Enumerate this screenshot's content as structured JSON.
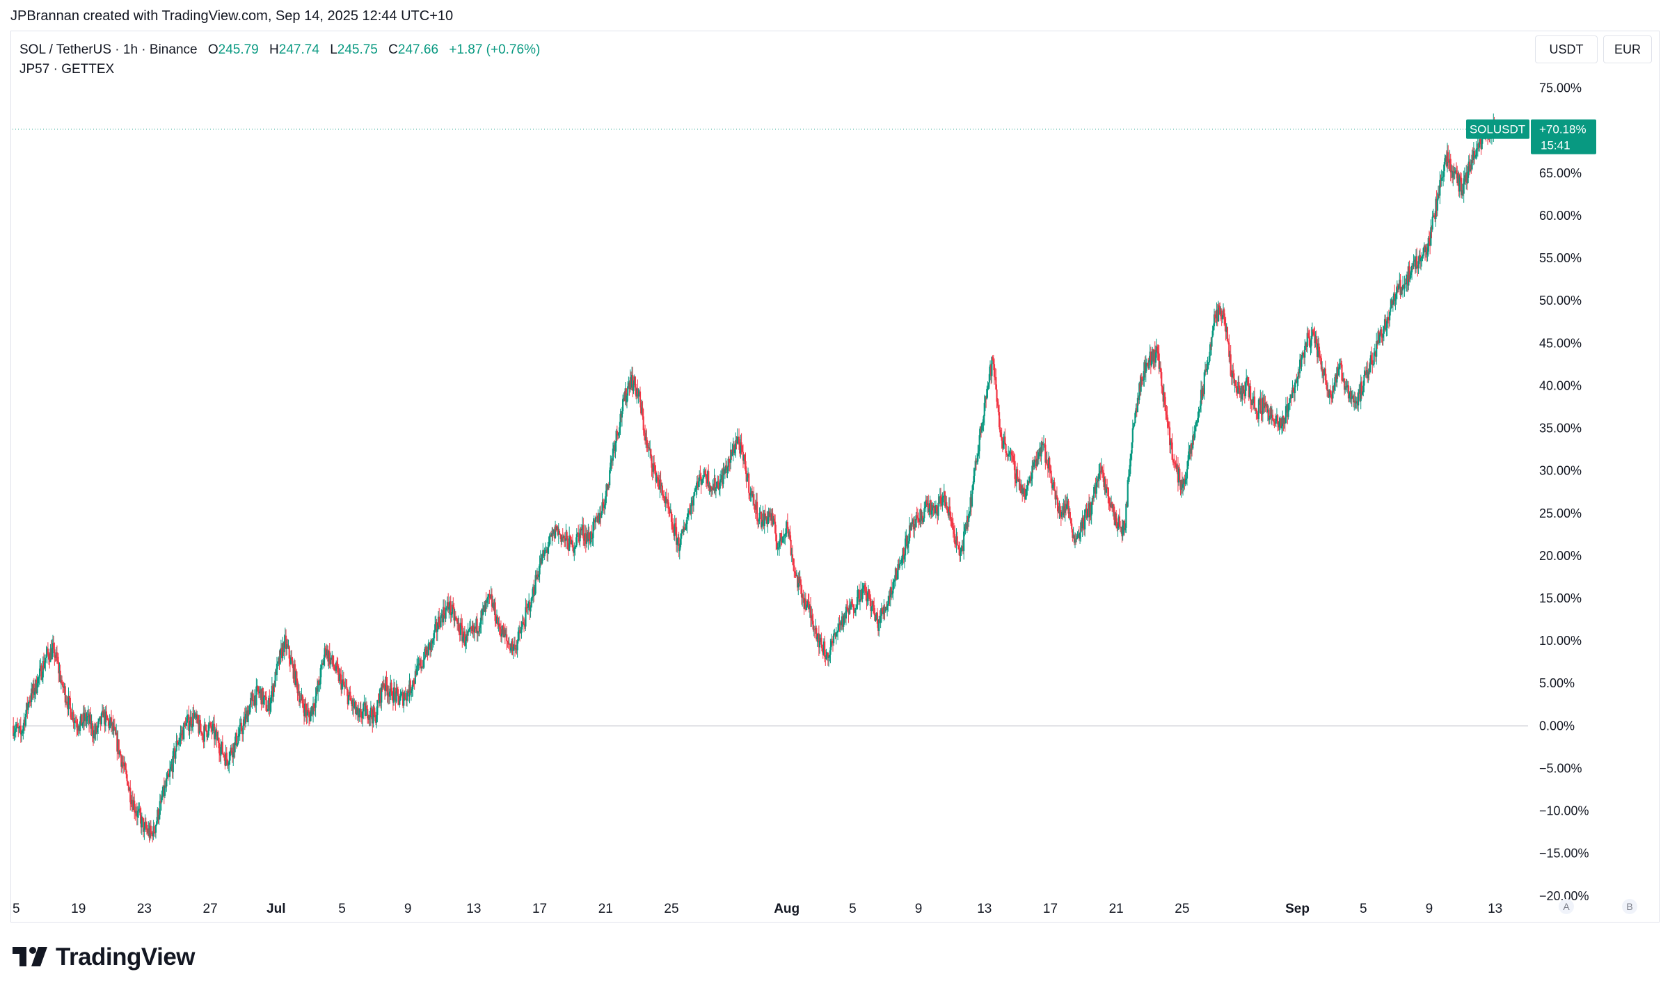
{
  "credit": "JPBrannan created with TradingView.com, Sep 14, 2025 12:44 UTC+10",
  "legend": {
    "symbol": "SOL / TetherUS · 1h · Binance",
    "open_label": "O",
    "open_value": "245.79",
    "high_label": "H",
    "high_value": "247.74",
    "low_label": "L",
    "low_value": "245.75",
    "close_label": "C",
    "close_value": "247.66",
    "change": "+1.87 (+0.76%)",
    "indicator": "JP57 · GETTEX"
  },
  "currency_buttons": [
    "USDT",
    "EUR"
  ],
  "scale_buttons": [
    "A",
    "B"
  ],
  "price_tag": {
    "symbol": "SOLUSDT",
    "value": "+70.18%",
    "countdown": "15:41"
  },
  "logo_text": "TradingView",
  "colors": {
    "up": "#089981",
    "down": "#f23645",
    "tag_bg": "#089981"
  },
  "chart_data": {
    "type": "candlestick",
    "ylim": [
      -21,
      78
    ],
    "y_tick_labels": [
      "75.00%",
      "65.00%",
      "60.00%",
      "55.00%",
      "50.00%",
      "45.00%",
      "40.00%",
      "35.00%",
      "30.00%",
      "25.00%",
      "20.00%",
      "15.00%",
      "10.00%",
      "5.00%",
      "0.00%",
      "−5.00%",
      "−10.00%",
      "−15.00%",
      "−20.00%"
    ],
    "y_tick_values": [
      75,
      65,
      60,
      55,
      50,
      45,
      40,
      35,
      30,
      25,
      20,
      15,
      10,
      5,
      0,
      -5,
      -10,
      -15,
      -20
    ],
    "x_tick_labels": [
      "5",
      "19",
      "23",
      "27",
      "Jul",
      "5",
      "9",
      "13",
      "17",
      "21",
      "25",
      "Aug",
      "5",
      "9",
      "13",
      "17",
      "21",
      "25",
      "Sep",
      "5",
      "9",
      "13"
    ],
    "x_tick_days": [
      0,
      4,
      8,
      12,
      16,
      20,
      24,
      28,
      32,
      36,
      40,
      47,
      51,
      55,
      59,
      63,
      67,
      71,
      78,
      82,
      86,
      90
    ],
    "x_tick_bold": [
      false,
      false,
      false,
      false,
      true,
      false,
      false,
      false,
      false,
      false,
      false,
      true,
      false,
      false,
      false,
      false,
      false,
      false,
      true,
      false,
      false,
      false
    ],
    "xlim_days": [
      0,
      92
    ],
    "baseline": 0,
    "last_value": 70.18,
    "close_path": [
      [
        0,
        0
      ],
      [
        0.5,
        -1
      ],
      [
        1,
        3
      ],
      [
        1.5,
        5
      ],
      [
        2,
        8
      ],
      [
        2.5,
        9
      ],
      [
        3,
        5
      ],
      [
        3.5,
        2
      ],
      [
        4,
        0
      ],
      [
        4.5,
        1
      ],
      [
        5,
        -1
      ],
      [
        5.5,
        1
      ],
      [
        6,
        0
      ],
      [
        6.5,
        -3
      ],
      [
        7,
        -7
      ],
      [
        7.5,
        -10
      ],
      [
        8,
        -12
      ],
      [
        8.5,
        -13
      ],
      [
        9,
        -9
      ],
      [
        9.5,
        -6
      ],
      [
        10,
        -2
      ],
      [
        10.5,
        0
      ],
      [
        11,
        1
      ],
      [
        11.5,
        -1
      ],
      [
        12,
        0
      ],
      [
        12.5,
        -2
      ],
      [
        13,
        -4
      ],
      [
        13.5,
        -2
      ],
      [
        14,
        0
      ],
      [
        14.5,
        3
      ],
      [
        15,
        4
      ],
      [
        15.5,
        2
      ],
      [
        16,
        6
      ],
      [
        16.5,
        10
      ],
      [
        17,
        7
      ],
      [
        17.5,
        3
      ],
      [
        18,
        1
      ],
      [
        18.5,
        4
      ],
      [
        19,
        9
      ],
      [
        19.5,
        7
      ],
      [
        20,
        5
      ],
      [
        20.5,
        3
      ],
      [
        21,
        1
      ],
      [
        21.5,
        2
      ],
      [
        22,
        1
      ],
      [
        22.5,
        5
      ],
      [
        23,
        4
      ],
      [
        23.5,
        3
      ],
      [
        24,
        4
      ],
      [
        24.5,
        6
      ],
      [
        25,
        8
      ],
      [
        25.5,
        10
      ],
      [
        26,
        13
      ],
      [
        26.5,
        14
      ],
      [
        27,
        12
      ],
      [
        27.5,
        10
      ],
      [
        28,
        11
      ],
      [
        28.5,
        13
      ],
      [
        29,
        15
      ],
      [
        29.5,
        12
      ],
      [
        30,
        10
      ],
      [
        30.5,
        9
      ],
      [
        31,
        12
      ],
      [
        31.5,
        15
      ],
      [
        32,
        19
      ],
      [
        32.5,
        21
      ],
      [
        33,
        23
      ],
      [
        33.5,
        22
      ],
      [
        34,
        21
      ],
      [
        34.5,
        23
      ],
      [
        35,
        22
      ],
      [
        35.5,
        24
      ],
      [
        36,
        27
      ],
      [
        36.5,
        33
      ],
      [
        37,
        37
      ],
      [
        37.5,
        41
      ],
      [
        38,
        39
      ],
      [
        38.5,
        33
      ],
      [
        39,
        30
      ],
      [
        39.5,
        27
      ],
      [
        40,
        24
      ],
      [
        40.5,
        21
      ],
      [
        41,
        25
      ],
      [
        41.5,
        28
      ],
      [
        42,
        30
      ],
      [
        42.5,
        28
      ],
      [
        43,
        29
      ],
      [
        43.5,
        31
      ],
      [
        44,
        34
      ],
      [
        44.5,
        30
      ],
      [
        45,
        26
      ],
      [
        45.5,
        24
      ],
      [
        46,
        25
      ],
      [
        46.5,
        21
      ],
      [
        47,
        24
      ],
      [
        47.5,
        18
      ],
      [
        48,
        15
      ],
      [
        48.5,
        13
      ],
      [
        49,
        10
      ],
      [
        49.5,
        8
      ],
      [
        50,
        11
      ],
      [
        50.5,
        13
      ],
      [
        51,
        14
      ],
      [
        51.5,
        16
      ],
      [
        52,
        15
      ],
      [
        52.5,
        12
      ],
      [
        53,
        14
      ],
      [
        53.5,
        17
      ],
      [
        54,
        20
      ],
      [
        54.5,
        23
      ],
      [
        55,
        24
      ],
      [
        55.5,
        26
      ],
      [
        56,
        25
      ],
      [
        56.5,
        27
      ],
      [
        57,
        24
      ],
      [
        57.5,
        20
      ],
      [
        58,
        24
      ],
      [
        58.5,
        31
      ],
      [
        59,
        38
      ],
      [
        59.5,
        43
      ],
      [
        60,
        34
      ],
      [
        60.5,
        32
      ],
      [
        61,
        29
      ],
      [
        61.5,
        27
      ],
      [
        62,
        31
      ],
      [
        62.5,
        33
      ],
      [
        63,
        30
      ],
      [
        63.5,
        25
      ],
      [
        64,
        26
      ],
      [
        64.5,
        22
      ],
      [
        65,
        24
      ],
      [
        65.5,
        26
      ],
      [
        66,
        30
      ],
      [
        66.5,
        27
      ],
      [
        67,
        24
      ],
      [
        67.5,
        23
      ],
      [
        68,
        35
      ],
      [
        68.5,
        41
      ],
      [
        69,
        43
      ],
      [
        69.5,
        44
      ],
      [
        70,
        37
      ],
      [
        70.5,
        31
      ],
      [
        71,
        28
      ],
      [
        71.5,
        32
      ],
      [
        72,
        37
      ],
      [
        72.5,
        42
      ],
      [
        73,
        48
      ],
      [
        73.5,
        49
      ],
      [
        74,
        41
      ],
      [
        74.5,
        39
      ],
      [
        75,
        40
      ],
      [
        75.5,
        37
      ],
      [
        76,
        38
      ],
      [
        76.5,
        36
      ],
      [
        77,
        35
      ],
      [
        77.5,
        38
      ],
      [
        78,
        41
      ],
      [
        78.5,
        45
      ],
      [
        79,
        46
      ],
      [
        79.5,
        42
      ],
      [
        80,
        39
      ],
      [
        80.5,
        42
      ],
      [
        81,
        40
      ],
      [
        81.5,
        38
      ],
      [
        82,
        40
      ],
      [
        82.5,
        43
      ],
      [
        83,
        46
      ],
      [
        83.5,
        48
      ],
      [
        84,
        51
      ],
      [
        84.5,
        52
      ],
      [
        85,
        54
      ],
      [
        85.5,
        55
      ],
      [
        86,
        57
      ],
      [
        86.5,
        62
      ],
      [
        87,
        67
      ],
      [
        87.5,
        65
      ],
      [
        88,
        63
      ],
      [
        88.5,
        66
      ],
      [
        89,
        68
      ],
      [
        89.5,
        70
      ],
      [
        90,
        70.18
      ]
    ]
  }
}
